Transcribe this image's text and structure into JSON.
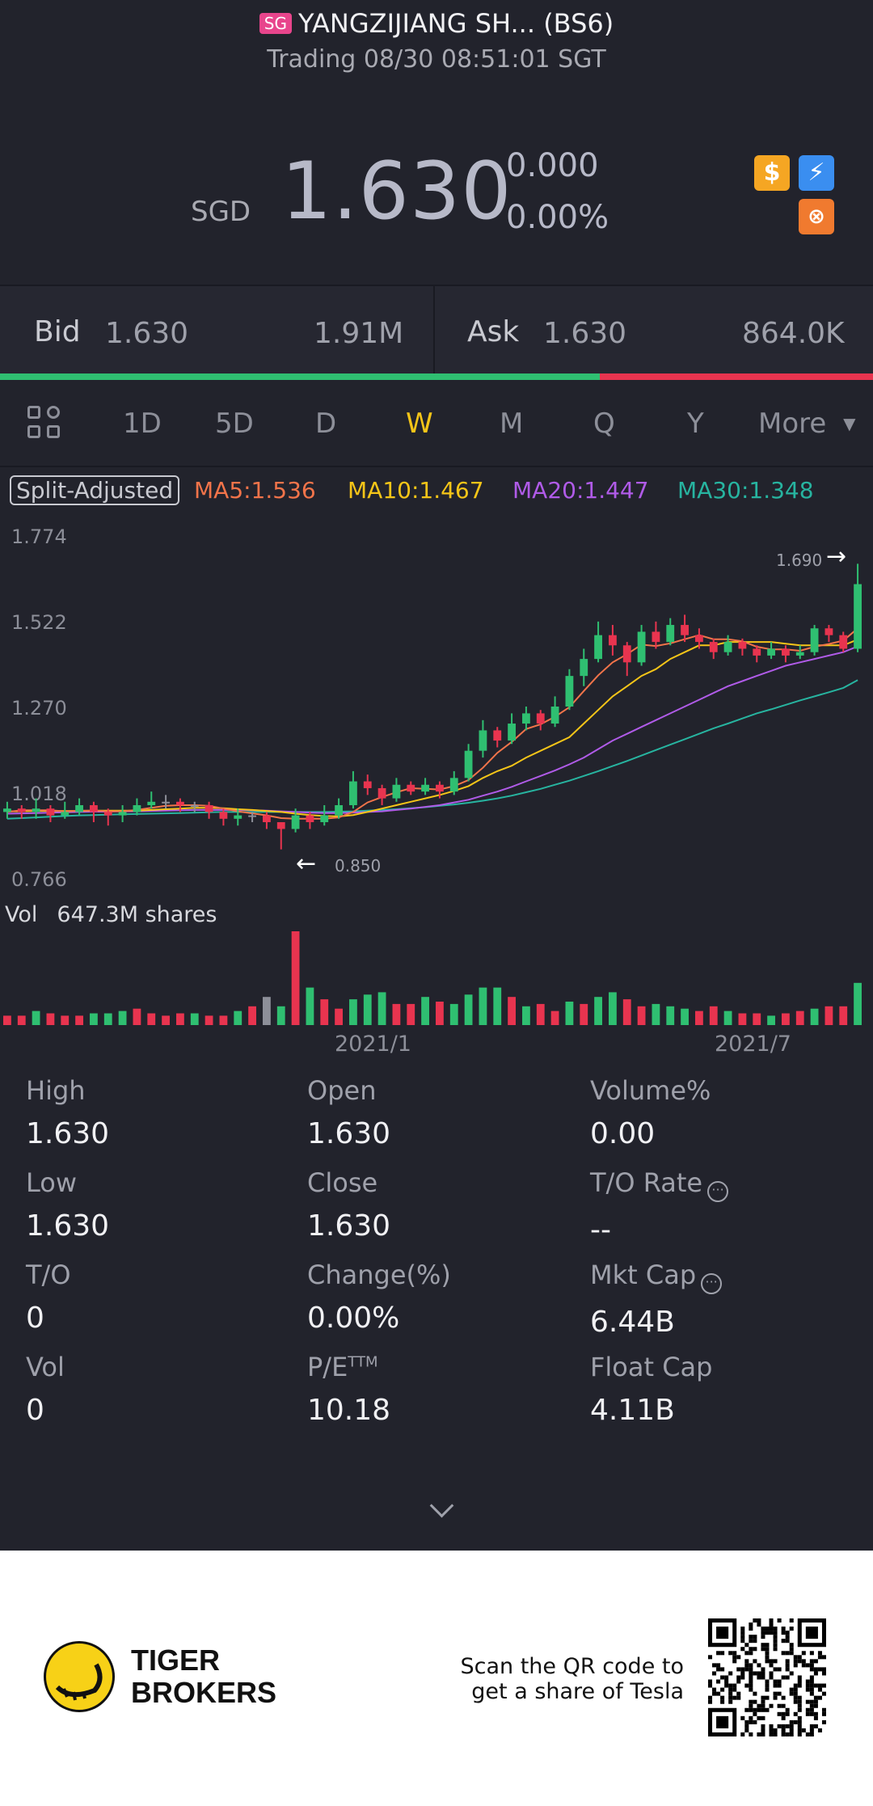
{
  "header": {
    "market_badge": "SG",
    "title": "YANGZIJIANG SH... (BS6)",
    "status": "Trading 08/30 08:51:01 SGT",
    "currency": "SGD",
    "price": "1.630",
    "change": "0.000",
    "change_pct": "0.00%"
  },
  "quote": {
    "bid_label": "Bid",
    "bid_price": "1.630",
    "bid_size": "1.91M",
    "ask_label": "Ask",
    "ask_price": "1.630",
    "ask_size": "864.0K"
  },
  "tabs": [
    "1D",
    "5D",
    "D",
    "W",
    "M",
    "Q",
    "Y"
  ],
  "active_tab": "W",
  "more_label": "More",
  "chart_legend": {
    "adjust": "Split-Adjusted",
    "ma5": "MA5:1.536",
    "ma10": "MA10:1.467",
    "ma20": "MA20:1.447",
    "ma30": "MA30:1.348"
  },
  "chart_data": {
    "type": "candlestick",
    "y_ticks": [
      "1.774",
      "1.522",
      "1.270",
      "1.018",
      "0.766"
    ],
    "ylim": [
      0.766,
      1.774
    ],
    "x_ticks": [
      "2021/1",
      "2021/7"
    ],
    "high_marker": "1.690",
    "low_marker": "0.850",
    "volume_label": "Vol",
    "volume_value": "647.3M shares",
    "colors": {
      "up": "#2fbf71",
      "down": "#e8344f",
      "flat": "#8d8f99",
      "ma5": "#f2744a",
      "ma10": "#f5c518",
      "ma20": "#b05be8",
      "ma30": "#27b4a0"
    },
    "candles": [
      [
        0.96,
        0.97,
        0.99,
        0.94
      ],
      [
        0.97,
        0.96,
        0.98,
        0.94
      ],
      [
        0.96,
        0.97,
        1.0,
        0.94
      ],
      [
        0.97,
        0.95,
        0.98,
        0.93
      ],
      [
        0.95,
        0.96,
        0.99,
        0.94
      ],
      [
        0.96,
        0.98,
        1.0,
        0.95
      ],
      [
        0.98,
        0.96,
        0.99,
        0.93
      ],
      [
        0.96,
        0.95,
        0.97,
        0.92
      ],
      [
        0.95,
        0.96,
        0.98,
        0.93
      ],
      [
        0.96,
        0.98,
        1.0,
        0.95
      ],
      [
        0.98,
        0.99,
        1.02,
        0.97
      ],
      [
        0.99,
        0.99,
        1.01,
        0.97
      ],
      [
        0.99,
        0.98,
        1.0,
        0.96
      ],
      [
        0.98,
        0.98,
        0.99,
        0.96
      ],
      [
        0.98,
        0.96,
        0.99,
        0.94
      ],
      [
        0.96,
        0.94,
        0.97,
        0.92
      ],
      [
        0.94,
        0.95,
        0.97,
        0.92
      ],
      [
        0.95,
        0.95,
        0.96,
        0.93
      ],
      [
        0.95,
        0.93,
        0.96,
        0.91
      ],
      [
        0.93,
        0.91,
        0.93,
        0.85
      ],
      [
        0.91,
        0.95,
        0.97,
        0.9
      ],
      [
        0.95,
        0.93,
        0.96,
        0.91
      ],
      [
        0.93,
        0.95,
        0.98,
        0.92
      ],
      [
        0.95,
        0.98,
        1.0,
        0.94
      ],
      [
        0.98,
        1.05,
        1.08,
        0.97
      ],
      [
        1.05,
        1.03,
        1.07,
        1.01
      ],
      [
        1.03,
        1.0,
        1.04,
        0.98
      ],
      [
        1.0,
        1.04,
        1.06,
        0.99
      ],
      [
        1.04,
        1.02,
        1.05,
        1.01
      ],
      [
        1.02,
        1.04,
        1.06,
        1.01
      ],
      [
        1.04,
        1.02,
        1.05,
        1.0
      ],
      [
        1.02,
        1.06,
        1.08,
        1.01
      ],
      [
        1.06,
        1.14,
        1.16,
        1.05
      ],
      [
        1.14,
        1.2,
        1.23,
        1.12
      ],
      [
        1.2,
        1.17,
        1.21,
        1.15
      ],
      [
        1.17,
        1.22,
        1.25,
        1.16
      ],
      [
        1.22,
        1.25,
        1.27,
        1.2
      ],
      [
        1.25,
        1.22,
        1.26,
        1.2
      ],
      [
        1.22,
        1.27,
        1.3,
        1.21
      ],
      [
        1.27,
        1.36,
        1.38,
        1.26
      ],
      [
        1.36,
        1.41,
        1.44,
        1.33
      ],
      [
        1.41,
        1.48,
        1.52,
        1.4
      ],
      [
        1.48,
        1.45,
        1.51,
        1.42
      ],
      [
        1.45,
        1.4,
        1.46,
        1.36
      ],
      [
        1.4,
        1.49,
        1.51,
        1.39
      ],
      [
        1.49,
        1.46,
        1.52,
        1.44
      ],
      [
        1.46,
        1.51,
        1.53,
        1.45
      ],
      [
        1.51,
        1.48,
        1.54,
        1.46
      ],
      [
        1.48,
        1.46,
        1.5,
        1.44
      ],
      [
        1.46,
        1.43,
        1.47,
        1.41
      ],
      [
        1.43,
        1.46,
        1.48,
        1.42
      ],
      [
        1.46,
        1.44,
        1.47,
        1.42
      ],
      [
        1.44,
        1.42,
        1.45,
        1.4
      ],
      [
        1.42,
        1.44,
        1.46,
        1.41
      ],
      [
        1.44,
        1.42,
        1.45,
        1.4
      ],
      [
        1.42,
        1.43,
        1.45,
        1.41
      ],
      [
        1.43,
        1.5,
        1.51,
        1.42
      ],
      [
        1.5,
        1.48,
        1.51,
        1.46
      ],
      [
        1.48,
        1.44,
        1.49,
        1.43
      ],
      [
        1.44,
        1.63,
        1.69,
        1.43
      ]
    ],
    "ma5": [
      0.96,
      0.965,
      0.965,
      0.965,
      0.962,
      0.964,
      0.964,
      0.962,
      0.962,
      0.966,
      0.972,
      0.978,
      0.98,
      0.98,
      0.978,
      0.97,
      0.962,
      0.956,
      0.95,
      0.942,
      0.94,
      0.94,
      0.94,
      0.944,
      0.96,
      0.988,
      1.004,
      1.018,
      1.03,
      1.028,
      1.026,
      1.036,
      1.054,
      1.09,
      1.134,
      1.166,
      1.204,
      1.218,
      1.24,
      1.268,
      1.316,
      1.362,
      1.4,
      1.424,
      1.452,
      1.448,
      1.456,
      1.468,
      1.48,
      1.468,
      1.468,
      1.462,
      1.446,
      1.438,
      1.438,
      1.434,
      1.446,
      1.454,
      1.464,
      1.5
    ],
    "ma10": [
      0.962,
      0.962,
      0.963,
      0.963,
      0.963,
      0.963,
      0.964,
      0.964,
      0.964,
      0.964,
      0.966,
      0.968,
      0.97,
      0.972,
      0.972,
      0.971,
      0.968,
      0.966,
      0.963,
      0.96,
      0.955,
      0.951,
      0.948,
      0.947,
      0.951,
      0.96,
      0.97,
      0.98,
      0.99,
      1.0,
      1.01,
      1.022,
      1.036,
      1.06,
      1.08,
      1.096,
      1.12,
      1.14,
      1.16,
      1.18,
      1.22,
      1.26,
      1.3,
      1.33,
      1.36,
      1.38,
      1.41,
      1.43,
      1.45,
      1.45,
      1.46,
      1.46,
      1.46,
      1.46,
      1.455,
      1.45,
      1.45,
      1.45,
      1.45,
      1.467
    ],
    "ma20": [
      0.955,
      0.956,
      0.957,
      0.958,
      0.959,
      0.96,
      0.961,
      0.961,
      0.962,
      0.962,
      0.963,
      0.964,
      0.965,
      0.966,
      0.966,
      0.966,
      0.966,
      0.965,
      0.964,
      0.962,
      0.96,
      0.958,
      0.957,
      0.957,
      0.958,
      0.96,
      0.962,
      0.966,
      0.97,
      0.975,
      0.98,
      0.988,
      0.996,
      1.008,
      1.02,
      1.034,
      1.05,
      1.066,
      1.082,
      1.1,
      1.12,
      1.145,
      1.17,
      1.19,
      1.21,
      1.23,
      1.25,
      1.27,
      1.29,
      1.31,
      1.33,
      1.345,
      1.36,
      1.375,
      1.39,
      1.4,
      1.41,
      1.42,
      1.43,
      1.447
    ],
    "ma30": [
      0.94,
      0.942,
      0.944,
      0.946,
      0.948,
      0.95,
      0.951,
      0.952,
      0.953,
      0.954,
      0.955,
      0.956,
      0.957,
      0.958,
      0.959,
      0.96,
      0.96,
      0.96,
      0.96,
      0.96,
      0.96,
      0.96,
      0.96,
      0.961,
      0.962,
      0.964,
      0.966,
      0.968,
      0.971,
      0.974,
      0.978,
      0.982,
      0.987,
      0.993,
      1.0,
      1.008,
      1.018,
      1.028,
      1.04,
      1.052,
      1.066,
      1.08,
      1.095,
      1.11,
      1.126,
      1.142,
      1.158,
      1.174,
      1.19,
      1.206,
      1.22,
      1.235,
      1.25,
      1.262,
      1.275,
      1.288,
      1.3,
      1.312,
      1.325,
      1.348
    ],
    "volumes": [
      4,
      4,
      6,
      5,
      4,
      4,
      5,
      5,
      6,
      7,
      5,
      4,
      5,
      5,
      4,
      4,
      6,
      8,
      12,
      8,
      40,
      16,
      11,
      7,
      11,
      13,
      14,
      9,
      9,
      12,
      10,
      9,
      13,
      16,
      16,
      12,
      8,
      9,
      6,
      10,
      9,
      12,
      14,
      11,
      8,
      9,
      8,
      7,
      6,
      8,
      6,
      5,
      5,
      4,
      5,
      6,
      7,
      8,
      8,
      18
    ],
    "vol_colors": [
      "d",
      "d",
      "u",
      "d",
      "d",
      "d",
      "u",
      "u",
      "u",
      "d",
      "d",
      "d",
      "d",
      "u",
      "d",
      "d",
      "u",
      "d",
      "f",
      "u",
      "d",
      "u",
      "d",
      "d",
      "u",
      "u",
      "u",
      "d",
      "d",
      "u",
      "d",
      "u",
      "u",
      "u",
      "u",
      "d",
      "u",
      "d",
      "d",
      "u",
      "d",
      "u",
      "u",
      "d",
      "d",
      "u",
      "u",
      "u",
      "d",
      "d",
      "u",
      "d",
      "d",
      "u",
      "d",
      "d",
      "u",
      "d",
      "d",
      "u"
    ]
  },
  "stats": [
    {
      "label": "High",
      "value": "1.630"
    },
    {
      "label": "Open",
      "value": "1.630"
    },
    {
      "label": "Volume%",
      "value": "0.00"
    },
    {
      "label": "Low",
      "value": "1.630"
    },
    {
      "label": "Close",
      "value": "1.630"
    },
    {
      "label": "T/O Rate",
      "value": "--"
    },
    {
      "label": "T/O",
      "value": "0"
    },
    {
      "label": "Change(%)",
      "value": "0.00%"
    },
    {
      "label": "Mkt Cap",
      "value": "6.44B"
    },
    {
      "label": "Vol",
      "value": "0"
    },
    {
      "label": "P/E",
      "sup": "TTM",
      "value": "10.18"
    },
    {
      "label": "Float Cap",
      "value": "4.11B"
    }
  ],
  "footer": {
    "brand_line1": "TIGER",
    "brand_line2": "BROKERS",
    "scan_line1": "Scan the QR code to",
    "scan_line2": "get a share of Tesla"
  }
}
